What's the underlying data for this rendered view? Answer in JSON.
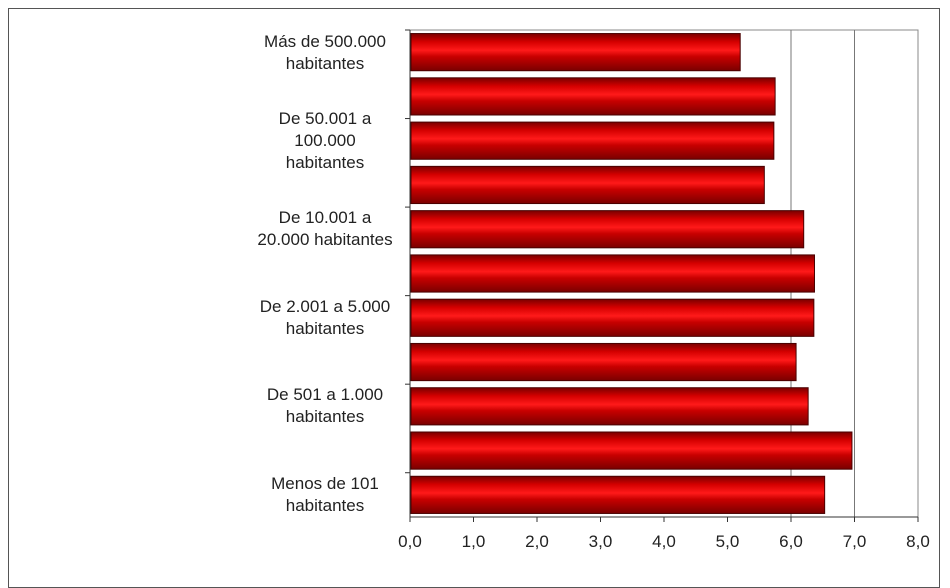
{
  "chart_data": {
    "type": "bar",
    "orientation": "horizontal",
    "title": "",
    "xlabel": "",
    "ylabel": "",
    "xlim": [
      0,
      8
    ],
    "x_ticks": [
      "0,0",
      "1,0",
      "2,0",
      "3,0",
      "4,0",
      "5,0",
      "6,0",
      "7,0",
      "8,0"
    ],
    "grid": "vertical gridlines at 6 and 7",
    "category_labels": [
      "Más de 500.000 habitantes",
      "De 50.001 a 100.000 habitantes",
      "De 10.001 a 20.000 habitantes",
      "De 2.001 a 5.000 habitantes",
      "De 501 a 1.000 habitantes",
      "Menos de 101 habitantes"
    ],
    "values": [
      5.2,
      5.75,
      5.73,
      5.58,
      6.2,
      6.37,
      6.36,
      6.08,
      6.27,
      6.96,
      6.53
    ],
    "bar_color": "#cc0000",
    "bar_dark_color": "#7a0000"
  }
}
